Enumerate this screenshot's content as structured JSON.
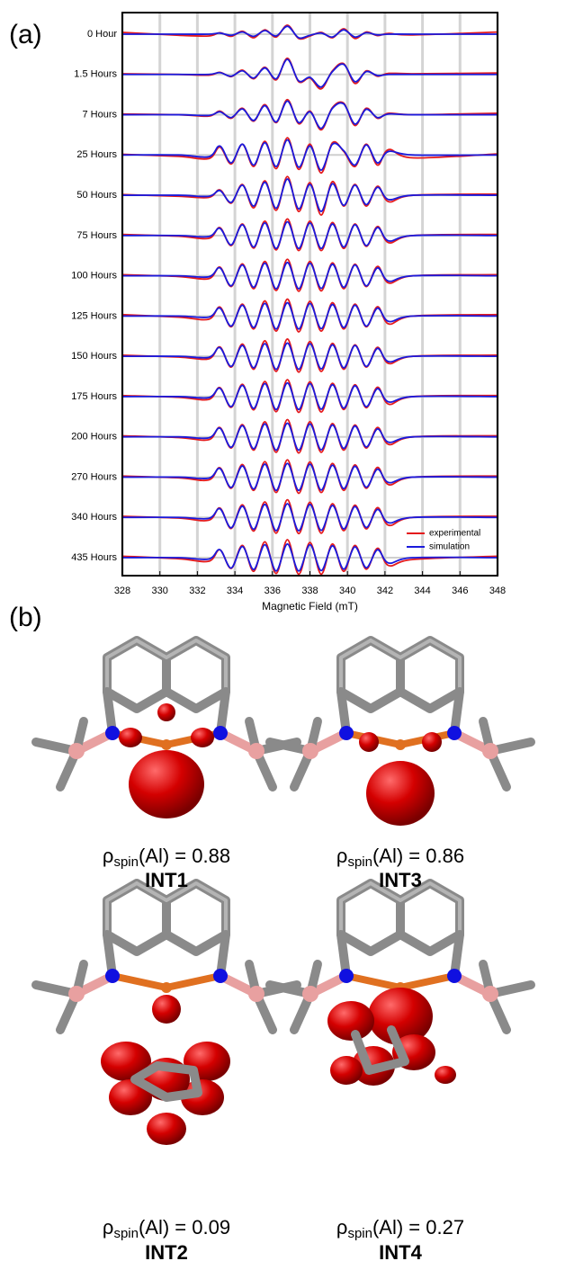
{
  "panel_a_label": "(a)",
  "panel_b_label": "(b)",
  "chart_data": {
    "type": "stacked-spectra",
    "xlabel": "Magnetic Field (mT)",
    "xlim": [
      328,
      348
    ],
    "xticks": [
      328,
      330,
      332,
      334,
      336,
      338,
      340,
      342,
      344,
      346,
      348
    ],
    "grid": true,
    "legend_position": "lower right",
    "legend": [
      {
        "name": "experimental",
        "color": "#e41a1c"
      },
      {
        "name": "simulation",
        "color": "#1a1adc"
      }
    ],
    "x": [
      328,
      331,
      332.6,
      333.2,
      333.8,
      334.4,
      335.0,
      335.6,
      336.2,
      336.8,
      337.4,
      338.0,
      338.6,
      339.2,
      339.8,
      340.4,
      341.0,
      341.6,
      342.2,
      343.5,
      348
    ],
    "rows": [
      {
        "label": "0 Hour",
        "experimental": [
          0.05,
          -0.03,
          -0.05,
          0.04,
          -0.06,
          0.08,
          -0.1,
          0.12,
          -0.08,
          0.25,
          -0.12,
          -0.05,
          0.05,
          -0.1,
          0.15,
          -0.12,
          0.06,
          -0.04,
          0.02,
          -0.02,
          0.06
        ],
        "simulation": [
          0,
          0,
          0,
          0.03,
          -0.03,
          0.06,
          -0.06,
          0.1,
          -0.05,
          0.22,
          -0.1,
          -0.03,
          0.03,
          -0.08,
          0.12,
          -0.08,
          0.04,
          -0.02,
          0,
          0,
          0
        ]
      },
      {
        "label": "1.5 Hours",
        "experimental": [
          0.02,
          0,
          -0.02,
          0.06,
          -0.06,
          0.12,
          -0.12,
          0.2,
          -0.15,
          0.45,
          -0.2,
          -0.1,
          -0.4,
          0.1,
          0.3,
          -0.25,
          0.1,
          -0.05,
          0.03,
          0.02,
          0.04
        ],
        "simulation": [
          0,
          0,
          0,
          0.05,
          -0.05,
          0.1,
          -0.1,
          0.18,
          -0.12,
          0.42,
          -0.18,
          -0.08,
          -0.35,
          0.08,
          0.28,
          -0.2,
          0.08,
          -0.03,
          0,
          0,
          0
        ]
      },
      {
        "label": "7 Hours",
        "experimental": [
          0.02,
          0,
          -0.04,
          0.1,
          -0.1,
          0.18,
          -0.18,
          0.28,
          -0.22,
          0.42,
          -0.25,
          0.1,
          -0.42,
          0.2,
          0.32,
          -0.3,
          0.18,
          -0.1,
          0.04,
          0,
          0.04
        ],
        "simulation": [
          0,
          0,
          -0.02,
          0.08,
          -0.08,
          0.16,
          -0.16,
          0.25,
          -0.2,
          0.38,
          -0.22,
          0.08,
          -0.38,
          0.18,
          0.3,
          -0.26,
          0.15,
          -0.08,
          0.02,
          0,
          0
        ]
      },
      {
        "label": "25 Hours",
        "experimental": [
          0.02,
          -0.04,
          -0.1,
          0.22,
          -0.25,
          0.3,
          -0.32,
          0.38,
          -0.38,
          0.48,
          -0.4,
          0.3,
          -0.5,
          0.34,
          0.1,
          -0.32,
          0.3,
          -0.28,
          0.15,
          -0.08,
          0.03
        ],
        "simulation": [
          0,
          0,
          -0.05,
          0.25,
          -0.22,
          0.3,
          -0.28,
          0.34,
          -0.32,
          0.42,
          -0.34,
          0.25,
          -0.42,
          0.3,
          0.12,
          -0.28,
          0.28,
          -0.22,
          0.1,
          0,
          0
        ]
      },
      {
        "label": "50 Hours",
        "experimental": [
          0.02,
          -0.03,
          -0.06,
          0.15,
          -0.22,
          0.3,
          -0.35,
          0.4,
          -0.42,
          0.52,
          -0.45,
          0.35,
          -0.55,
          0.38,
          -0.3,
          0.3,
          -0.3,
          0.25,
          -0.18,
          0,
          0.03
        ],
        "simulation": [
          0,
          0,
          -0.03,
          0.13,
          -0.2,
          0.28,
          -0.3,
          0.36,
          -0.36,
          0.45,
          -0.38,
          0.3,
          -0.45,
          0.32,
          -0.28,
          0.28,
          -0.26,
          0.22,
          -0.12,
          0,
          0
        ]
      },
      {
        "label": "75 Hours",
        "experimental": [
          0.03,
          -0.02,
          -0.08,
          0.22,
          -0.28,
          0.32,
          -0.35,
          0.4,
          -0.4,
          0.46,
          -0.42,
          0.4,
          -0.42,
          0.36,
          -0.36,
          0.32,
          -0.3,
          0.25,
          -0.2,
          0,
          0.03
        ],
        "simulation": [
          0,
          0,
          -0.03,
          0.2,
          -0.26,
          0.3,
          -0.32,
          0.35,
          -0.36,
          0.38,
          -0.36,
          0.35,
          -0.36,
          0.32,
          -0.32,
          0.3,
          -0.28,
          0.22,
          -0.15,
          0,
          0
        ]
      },
      {
        "label": "100 Hours",
        "experimental": [
          0.03,
          -0.02,
          -0.08,
          0.24,
          -0.3,
          0.33,
          -0.36,
          0.4,
          -0.41,
          0.46,
          -0.43,
          0.4,
          -0.42,
          0.36,
          -0.36,
          0.32,
          -0.3,
          0.26,
          -0.2,
          0,
          0.03
        ],
        "simulation": [
          0,
          0,
          -0.03,
          0.22,
          -0.28,
          0.3,
          -0.32,
          0.35,
          -0.36,
          0.37,
          -0.36,
          0.35,
          -0.35,
          0.32,
          -0.32,
          0.3,
          -0.28,
          0.22,
          -0.15,
          0,
          0
        ]
      },
      {
        "label": "125 Hours",
        "experimental": [
          0.04,
          -0.03,
          -0.09,
          0.25,
          -0.3,
          0.33,
          -0.36,
          0.42,
          -0.42,
          0.47,
          -0.44,
          0.41,
          -0.42,
          0.37,
          -0.36,
          0.33,
          -0.3,
          0.26,
          -0.22,
          0,
          0.04
        ],
        "simulation": [
          0,
          0,
          -0.03,
          0.22,
          -0.28,
          0.3,
          -0.32,
          0.35,
          -0.36,
          0.37,
          -0.36,
          0.35,
          -0.35,
          0.32,
          -0.32,
          0.3,
          -0.28,
          0.22,
          -0.15,
          0,
          0
        ]
      },
      {
        "label": "150 Hours",
        "experimental": [
          0.03,
          -0.02,
          -0.07,
          0.26,
          -0.3,
          0.34,
          -0.36,
          0.43,
          -0.42,
          0.48,
          -0.44,
          0.41,
          -0.42,
          0.36,
          -0.36,
          0.32,
          -0.3,
          0.25,
          -0.2,
          0,
          0.03
        ],
        "simulation": [
          0,
          0,
          -0.03,
          0.24,
          -0.28,
          0.3,
          -0.32,
          0.35,
          -0.36,
          0.37,
          -0.36,
          0.35,
          -0.35,
          0.32,
          -0.32,
          0.3,
          -0.28,
          0.22,
          -0.15,
          0,
          0
        ]
      },
      {
        "label": "175 Hours",
        "experimental": [
          0.03,
          -0.02,
          -0.08,
          0.25,
          -0.3,
          0.34,
          -0.37,
          0.42,
          -0.42,
          0.47,
          -0.44,
          0.41,
          -0.43,
          0.37,
          -0.36,
          0.33,
          -0.31,
          0.26,
          -0.21,
          0,
          0.03
        ],
        "simulation": [
          0,
          0,
          -0.03,
          0.23,
          -0.28,
          0.31,
          -0.33,
          0.36,
          -0.36,
          0.38,
          -0.36,
          0.36,
          -0.35,
          0.33,
          -0.32,
          0.3,
          -0.28,
          0.22,
          -0.15,
          0,
          0
        ]
      },
      {
        "label": "200 Hours",
        "experimental": [
          0.03,
          -0.02,
          -0.08,
          0.26,
          -0.31,
          0.34,
          -0.37,
          0.42,
          -0.43,
          0.48,
          -0.45,
          0.42,
          -0.43,
          0.37,
          -0.37,
          0.33,
          -0.31,
          0.26,
          -0.21,
          0,
          0.03
        ],
        "simulation": [
          0,
          0,
          -0.03,
          0.24,
          -0.29,
          0.31,
          -0.33,
          0.36,
          -0.37,
          0.38,
          -0.37,
          0.36,
          -0.36,
          0.33,
          -0.32,
          0.3,
          -0.28,
          0.22,
          -0.15,
          0,
          0
        ]
      },
      {
        "label": "270 Hours",
        "experimental": [
          0.03,
          -0.02,
          -0.08,
          0.26,
          -0.31,
          0.35,
          -0.37,
          0.43,
          -0.43,
          0.48,
          -0.45,
          0.42,
          -0.43,
          0.38,
          -0.37,
          0.34,
          -0.31,
          0.27,
          -0.21,
          0,
          0.03
        ],
        "simulation": [
          0,
          0,
          -0.03,
          0.24,
          -0.29,
          0.31,
          -0.33,
          0.36,
          -0.37,
          0.38,
          -0.37,
          0.36,
          -0.36,
          0.33,
          -0.32,
          0.3,
          -0.28,
          0.22,
          -0.15,
          0,
          0
        ]
      },
      {
        "label": "340 Hours",
        "experimental": [
          0.03,
          -0.02,
          -0.08,
          0.26,
          -0.31,
          0.35,
          -0.38,
          0.43,
          -0.44,
          0.49,
          -0.45,
          0.42,
          -0.44,
          0.38,
          -0.37,
          0.34,
          -0.32,
          0.27,
          -0.22,
          0,
          0.03
        ],
        "simulation": [
          0,
          0,
          -0.03,
          0.24,
          -0.29,
          0.31,
          -0.33,
          0.36,
          -0.37,
          0.38,
          -0.37,
          0.36,
          -0.36,
          0.33,
          -0.32,
          0.3,
          -0.28,
          0.22,
          -0.15,
          0,
          0
        ]
      },
      {
        "label": "435 Hours",
        "experimental": [
          0.04,
          -0.03,
          -0.1,
          0.22,
          -0.3,
          0.34,
          -0.38,
          0.44,
          -0.44,
          0.5,
          -0.46,
          0.42,
          -0.46,
          0.38,
          -0.38,
          0.34,
          -0.32,
          0.26,
          -0.22,
          -0.05,
          0.04
        ],
        "simulation": [
          0,
          0,
          -0.04,
          0.22,
          -0.29,
          0.31,
          -0.33,
          0.36,
          -0.37,
          0.38,
          -0.37,
          0.36,
          -0.36,
          0.33,
          -0.32,
          0.3,
          -0.28,
          0.22,
          -0.15,
          0,
          0
        ]
      }
    ]
  },
  "structures": [
    {
      "symbol": "ρ",
      "subscript": "spin",
      "value_text": "(Al) = 0.88",
      "name": "INT1"
    },
    {
      "symbol": "ρ",
      "subscript": "spin",
      "value_text": "(Al) = 0.86",
      "name": "INT3"
    },
    {
      "symbol": "ρ",
      "subscript": "spin",
      "value_text": "(Al) = 0.09",
      "name": "INT2"
    },
    {
      "symbol": "ρ",
      "subscript": "spin",
      "value_text": "(Al) = 0.27",
      "name": "INT4"
    }
  ]
}
